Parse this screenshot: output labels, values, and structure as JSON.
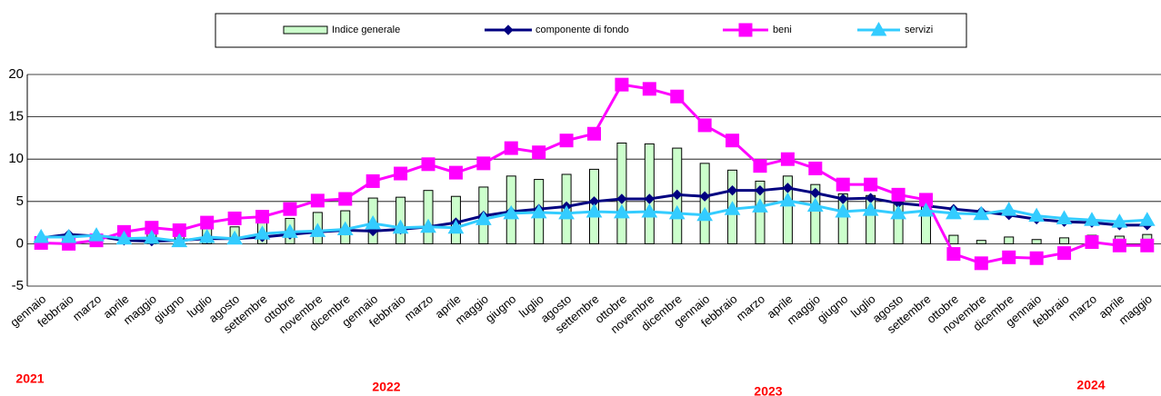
{
  "chart_data": {
    "type": "combo",
    "categories": [
      "gennaio",
      "febbraio",
      "marzo",
      "aprile",
      "maggio",
      "giugno",
      "luglio",
      "agosto",
      "settembre",
      "ottobre",
      "novembre",
      "dicembre",
      "gennaio",
      "febbraio",
      "marzo",
      "aprile",
      "maggio",
      "giugno",
      "luglio",
      "agosto",
      "settembre",
      "ottobre",
      "novembre",
      "dicembre",
      "gennaio",
      "febbraio",
      "marzo",
      "aprile",
      "maggio",
      "giugno",
      "luglio",
      "agosto",
      "settembre",
      "ottobre",
      "novembre",
      "dicembre",
      "gennaio",
      "febbraio",
      "marzo",
      "aprile",
      "maggio"
    ],
    "year_labels": [
      "2021",
      "2022",
      "2023",
      "2024"
    ],
    "series": [
      {
        "name": "Indice generale",
        "type": "bar",
        "color": "#ccffcc",
        "values": [
          0.7,
          0.6,
          0.8,
          1.1,
          1.3,
          1.3,
          1.9,
          2.0,
          2.5,
          3.0,
          3.7,
          3.9,
          5.4,
          5.5,
          6.3,
          5.6,
          6.7,
          8.0,
          7.6,
          8.2,
          8.8,
          11.9,
          11.8,
          11.3,
          9.5,
          8.7,
          7.4,
          8.0,
          7.0,
          5.9,
          5.7,
          5.2,
          5.0,
          1.0,
          0.4,
          0.8,
          0.5,
          0.7,
          1.0,
          0.9,
          1.1
        ]
      },
      {
        "name": "componente di fondo",
        "type": "line",
        "marker": "diamond",
        "color": "#000080",
        "values": [
          0.7,
          1.1,
          0.9,
          0.4,
          0.3,
          0.4,
          0.6,
          0.6,
          0.8,
          1.1,
          1.4,
          1.6,
          1.5,
          1.7,
          2.0,
          2.5,
          3.3,
          3.8,
          4.1,
          4.4,
          5.0,
          5.3,
          5.3,
          5.8,
          5.6,
          6.3,
          6.3,
          6.6,
          6.0,
          5.3,
          5.4,
          4.8,
          4.5,
          4.1,
          3.8,
          3.4,
          2.9,
          2.6,
          2.5,
          2.2,
          2.2
        ]
      },
      {
        "name": "beni",
        "type": "line",
        "marker": "square",
        "color": "#ff00ff",
        "values": [
          0.1,
          0.0,
          0.4,
          1.4,
          1.9,
          1.6,
          2.5,
          3.0,
          3.2,
          4.1,
          5.1,
          5.3,
          7.4,
          8.3,
          9.4,
          8.4,
          9.5,
          11.3,
          10.8,
          12.2,
          13.0,
          18.8,
          18.3,
          17.4,
          14.0,
          12.2,
          9.2,
          10.0,
          8.9,
          7.0,
          7.0,
          5.8,
          5.2,
          -1.2,
          -2.3,
          -1.6,
          -1.7,
          -1.1,
          0.2,
          -0.2,
          -0.2
        ]
      },
      {
        "name": "servizi",
        "type": "line",
        "marker": "triangle",
        "color": "#33ccff",
        "values": [
          0.8,
          0.8,
          1.0,
          0.6,
          0.7,
          0.3,
          0.8,
          0.6,
          1.2,
          1.4,
          1.5,
          1.7,
          2.4,
          1.9,
          2.0,
          1.9,
          2.9,
          3.6,
          3.7,
          3.6,
          3.8,
          3.7,
          3.8,
          3.6,
          3.4,
          4.1,
          4.4,
          5.1,
          4.5,
          3.8,
          4.0,
          3.6,
          3.9,
          3.6,
          3.5,
          4.0,
          3.3,
          3.0,
          2.8,
          2.6,
          2.8
        ]
      }
    ],
    "ylim": [
      -5,
      20
    ],
    "yticks": [
      -5,
      0,
      5,
      10,
      15,
      20
    ],
    "grid": true
  }
}
